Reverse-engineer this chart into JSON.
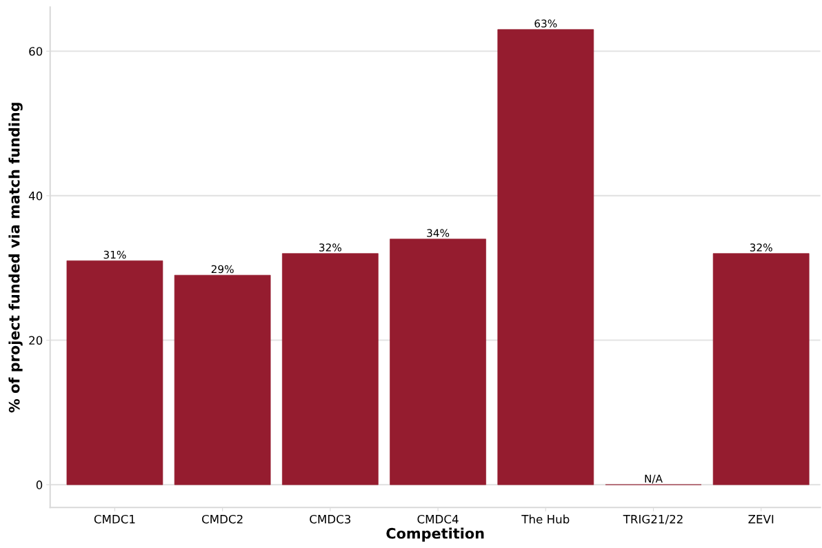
{
  "chart_data": {
    "type": "bar",
    "xlabel": "Competition",
    "ylabel": "% of project funded via match funding",
    "categories": [
      "CMDC1",
      "CMDC2",
      "CMDC3",
      "CMDC4",
      "The Hub",
      "TRIG21/22",
      "ZEVI"
    ],
    "values": [
      31,
      29,
      32,
      34,
      63,
      0,
      32
    ],
    "value_labels": [
      "31%",
      "29%",
      "32%",
      "34%",
      "63%",
      "N/A",
      "32%"
    ],
    "color": "#951c2f",
    "ylim": [
      -3.15,
      66.1
    ],
    "yticks": [
      0,
      20,
      40,
      60
    ],
    "grid": "y"
  }
}
